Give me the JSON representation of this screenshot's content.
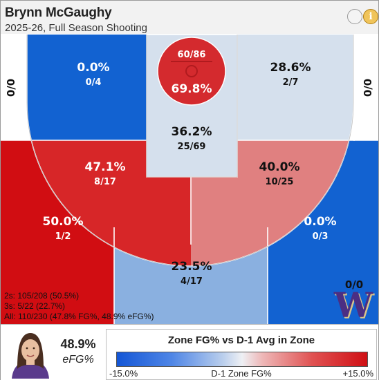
{
  "header": {
    "player_name": "Brynn McGaughy",
    "subtitle": "2025-26, Full Season Shooting",
    "info_glyph": "i"
  },
  "chart_data": {
    "type": "heatmap",
    "title": "Brynn McGaughy",
    "subtitle": "2025-26, Full Season Shooting",
    "colorscale": {
      "title": "Zone FG% vs D-1 Avg in Zone",
      "min_label": "-15.0%",
      "mid_label": "D-1 Zone FG%",
      "max_label": "+15.0%",
      "range": [
        -15.0,
        15.0
      ],
      "low_color": "#1456d6",
      "mid_color": "#eef0f4",
      "high_color": "#d00f14"
    },
    "zones": [
      {
        "name": "left-corner-3",
        "pct": "0/0",
        "made": 0,
        "att": 0,
        "color": "#ffffff"
      },
      {
        "name": "right-corner-3",
        "pct": "0/0",
        "made": 0,
        "att": 0,
        "color": "#ffffff"
      },
      {
        "name": "left-baseline-2",
        "pct": "0.0%",
        "frac": "0/4",
        "made": 0,
        "att": 4,
        "color": "#1262d1"
      },
      {
        "name": "right-baseline-2",
        "pct": "28.6%",
        "frac": "2/7",
        "made": 2,
        "att": 7,
        "color": "#d5e0ed"
      },
      {
        "name": "rim",
        "pct": "69.8%",
        "frac": "60/86",
        "made": 60,
        "att": 86,
        "color": "#d42a2e"
      },
      {
        "name": "paint",
        "pct": "36.2%",
        "frac": "25/69",
        "made": 25,
        "att": 69,
        "color": "#d5e0ed"
      },
      {
        "name": "left-elbow-2",
        "pct": "47.1%",
        "frac": "8/17",
        "made": 8,
        "att": 17,
        "color": "#d72628"
      },
      {
        "name": "right-elbow-2",
        "pct": "40.0%",
        "frac": "10/25",
        "made": 10,
        "att": 25,
        "color": "#e08080"
      },
      {
        "name": "left-wing-3",
        "pct": "50.0%",
        "frac": "1/2",
        "made": 1,
        "att": 2,
        "color": "#d10d12"
      },
      {
        "name": "top-of-key-3",
        "pct": "23.5%",
        "frac": "4/17",
        "made": 4,
        "att": 17,
        "color": "#8ab0e0"
      },
      {
        "name": "right-wing-3",
        "pct": "0.0%",
        "frac": "0/3",
        "made": 0,
        "att": 3,
        "color": "#1262d1"
      },
      {
        "name": "heave",
        "pct": "0/0",
        "made": 0,
        "att": 0
      }
    ],
    "totals": {
      "twos": "2s: 105/208 (50.5%)",
      "threes": "3s: 5/22 (22.7%)",
      "all": "All: 110/230 (47.8% FG%, 48.9% eFG%)"
    }
  },
  "player_card": {
    "efg_value": "48.9%",
    "efg_label": "eFG%",
    "team_logo_letter": "W",
    "team_color": "#4b2e83"
  }
}
